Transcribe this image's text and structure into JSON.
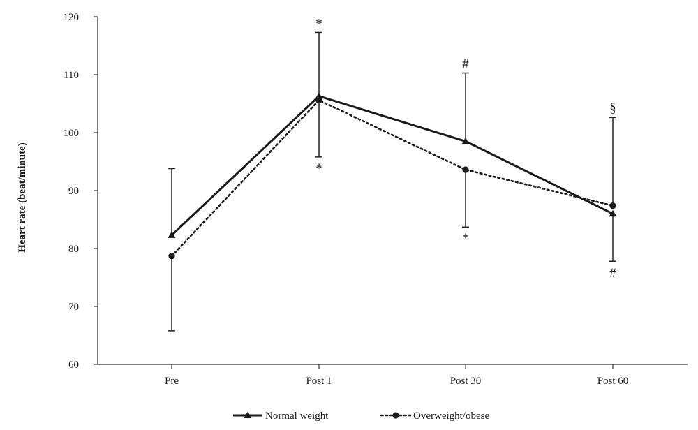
{
  "chart_data": {
    "type": "line",
    "title": "",
    "xlabel": "",
    "ylabel": "Heart rate (beat/minute)",
    "categories": [
      "Pre",
      "Post 1",
      "Post 30",
      "Post 60"
    ],
    "ylim": [
      60,
      120
    ],
    "yticks": [
      60,
      70,
      80,
      90,
      100,
      110,
      120
    ],
    "grid": false,
    "legend_position": "bottom",
    "series": [
      {
        "name": "Normal weight",
        "marker": "triangle",
        "line_style": "solid",
        "color": "#1a1a1a",
        "values": [
          82.3,
          106.3,
          98.5,
          86.0
        ],
        "error_upper": [
          93.8,
          117.3,
          110.3,
          null
        ],
        "error_lower": [
          null,
          null,
          null,
          77.8
        ]
      },
      {
        "name": "Overweight/obese",
        "marker": "circle",
        "line_style": "dotted",
        "color": "#1a1a1a",
        "values": [
          78.7,
          105.6,
          93.6,
          87.4
        ],
        "error_upper": [
          null,
          null,
          null,
          102.6
        ],
        "error_lower": [
          65.8,
          95.8,
          83.7,
          null
        ]
      }
    ],
    "annotations": [
      {
        "text": "*",
        "category": "Post 1",
        "y": 118.9,
        "series": "Normal weight"
      },
      {
        "text": "*",
        "category": "Post 1",
        "y": 94.0,
        "series": "Overweight/obese"
      },
      {
        "text": "#",
        "category": "Post 30",
        "y": 112.0,
        "series": "Normal weight"
      },
      {
        "text": "*",
        "category": "Post 30",
        "y": 81.9,
        "series": "Overweight/obese"
      },
      {
        "text": "§",
        "category": "Post 60",
        "y": 104.4,
        "series": "Overweight/obese"
      },
      {
        "text": "#",
        "category": "Post 60",
        "y": 75.9,
        "series": "Normal weight"
      }
    ]
  }
}
